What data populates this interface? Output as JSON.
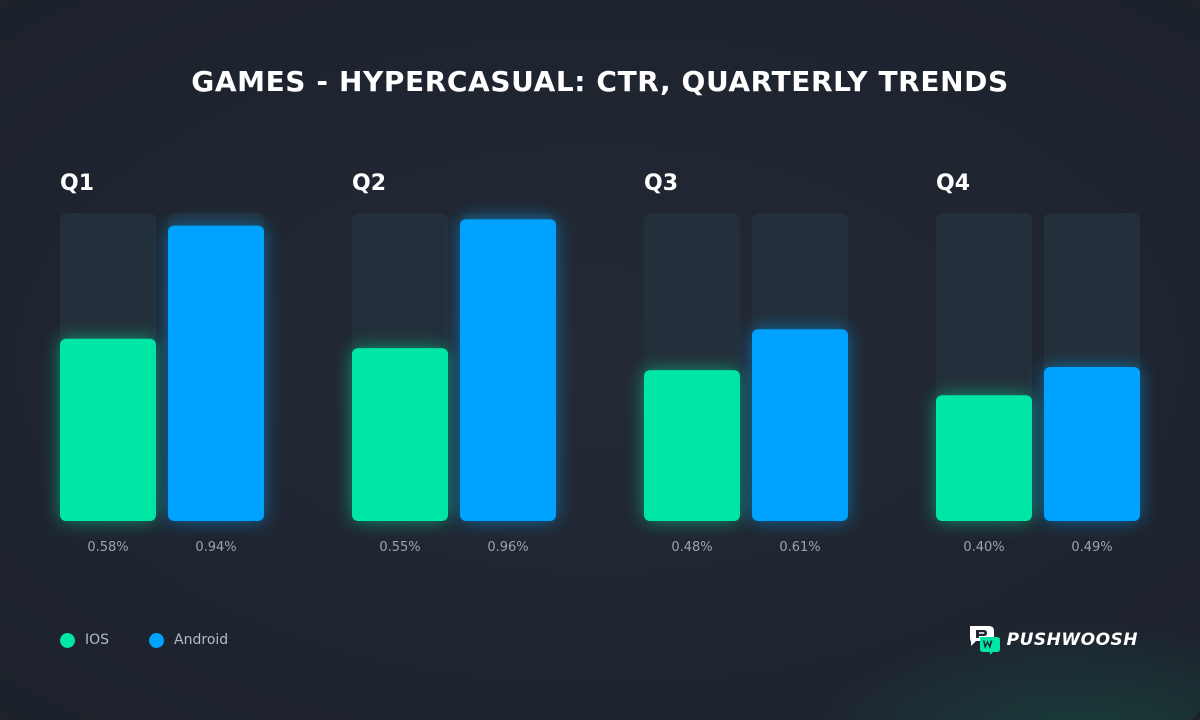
{
  "chart_data": {
    "type": "bar",
    "title": "GAMES - HYPERCASUAL: CTR, QUARTERLY TRENDS",
    "categories": [
      "Q1",
      "Q2",
      "Q3",
      "Q4"
    ],
    "series": [
      {
        "name": "IOS",
        "color": "#00e6a4",
        "values": [
          0.58,
          0.55,
          0.48,
          0.4
        ],
        "labels": [
          "0.58%",
          "0.55%",
          "0.48%",
          "0.40%"
        ]
      },
      {
        "name": "Android",
        "color": "#00a2ff",
        "values": [
          0.94,
          0.96,
          0.61,
          0.49
        ],
        "labels": [
          "0.94%",
          "0.96%",
          "0.61%",
          "0.49%"
        ]
      }
    ],
    "ylim": [
      0,
      0.98
    ],
    "unit": "%",
    "grid": false,
    "legend_position": "bottom-left"
  },
  "brand": {
    "name": "PUSHWOOSH",
    "logo_icon": "pushwoosh-logo-icon"
  },
  "colors": {
    "background": "#1f2530",
    "track": "#232f3a",
    "title": "#ffffff",
    "value_text": "#9aa3b1"
  }
}
